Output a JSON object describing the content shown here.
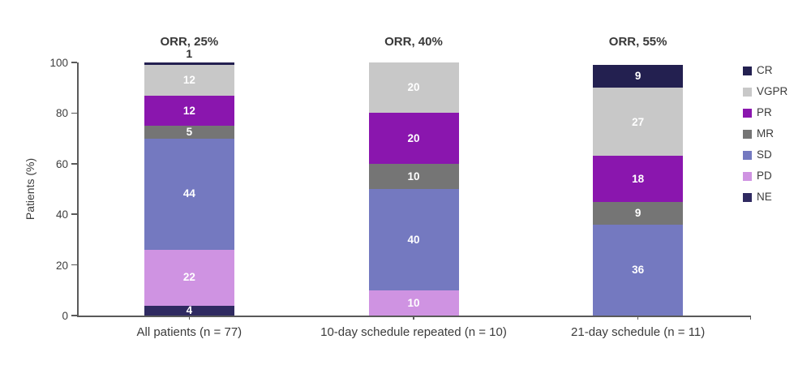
{
  "chart_data": {
    "type": "bar",
    "stacked": true,
    "title": "",
    "xlabel": "",
    "ylabel": "Patients (%)",
    "ylim": [
      0,
      100
    ],
    "yticks": [
      0,
      20,
      40,
      60,
      80,
      100
    ],
    "grid": false,
    "legend_position": "right",
    "categories": [
      "All patients (n = 77)",
      "10-day schedule repeated (n = 10)",
      "21-day schedule (n = 11)"
    ],
    "group_annotations": [
      "ORR, 25%",
      "ORR, 40%",
      "ORR, 55%"
    ],
    "stack_order_bottom_to_top": [
      "NE",
      "PD",
      "SD",
      "MR",
      "PR",
      "VGPR",
      "CR"
    ],
    "series": [
      {
        "name": "CR",
        "color": "#232050",
        "values": [
          1,
          0,
          9
        ]
      },
      {
        "name": "VGPR",
        "color": "#c8c8c8",
        "values": [
          12,
          20,
          27
        ]
      },
      {
        "name": "PR",
        "color": "#8a16ae",
        "values": [
          12,
          20,
          18
        ]
      },
      {
        "name": "MR",
        "color": "#757575",
        "values": [
          5,
          10,
          9
        ]
      },
      {
        "name": "SD",
        "color": "#7479c0",
        "values": [
          44,
          40,
          36
        ]
      },
      {
        "name": "PD",
        "color": "#cf93e2",
        "values": [
          22,
          10,
          0
        ]
      },
      {
        "name": "NE",
        "color": "#2f2a61",
        "values": [
          4,
          0,
          0
        ]
      }
    ],
    "bar_totals": [
      100,
      100,
      99
    ],
    "label_text_color_inside": "#ffffff",
    "label_text_color_outside": "#2e2e2e",
    "axis_color": "#5a5a5a"
  }
}
